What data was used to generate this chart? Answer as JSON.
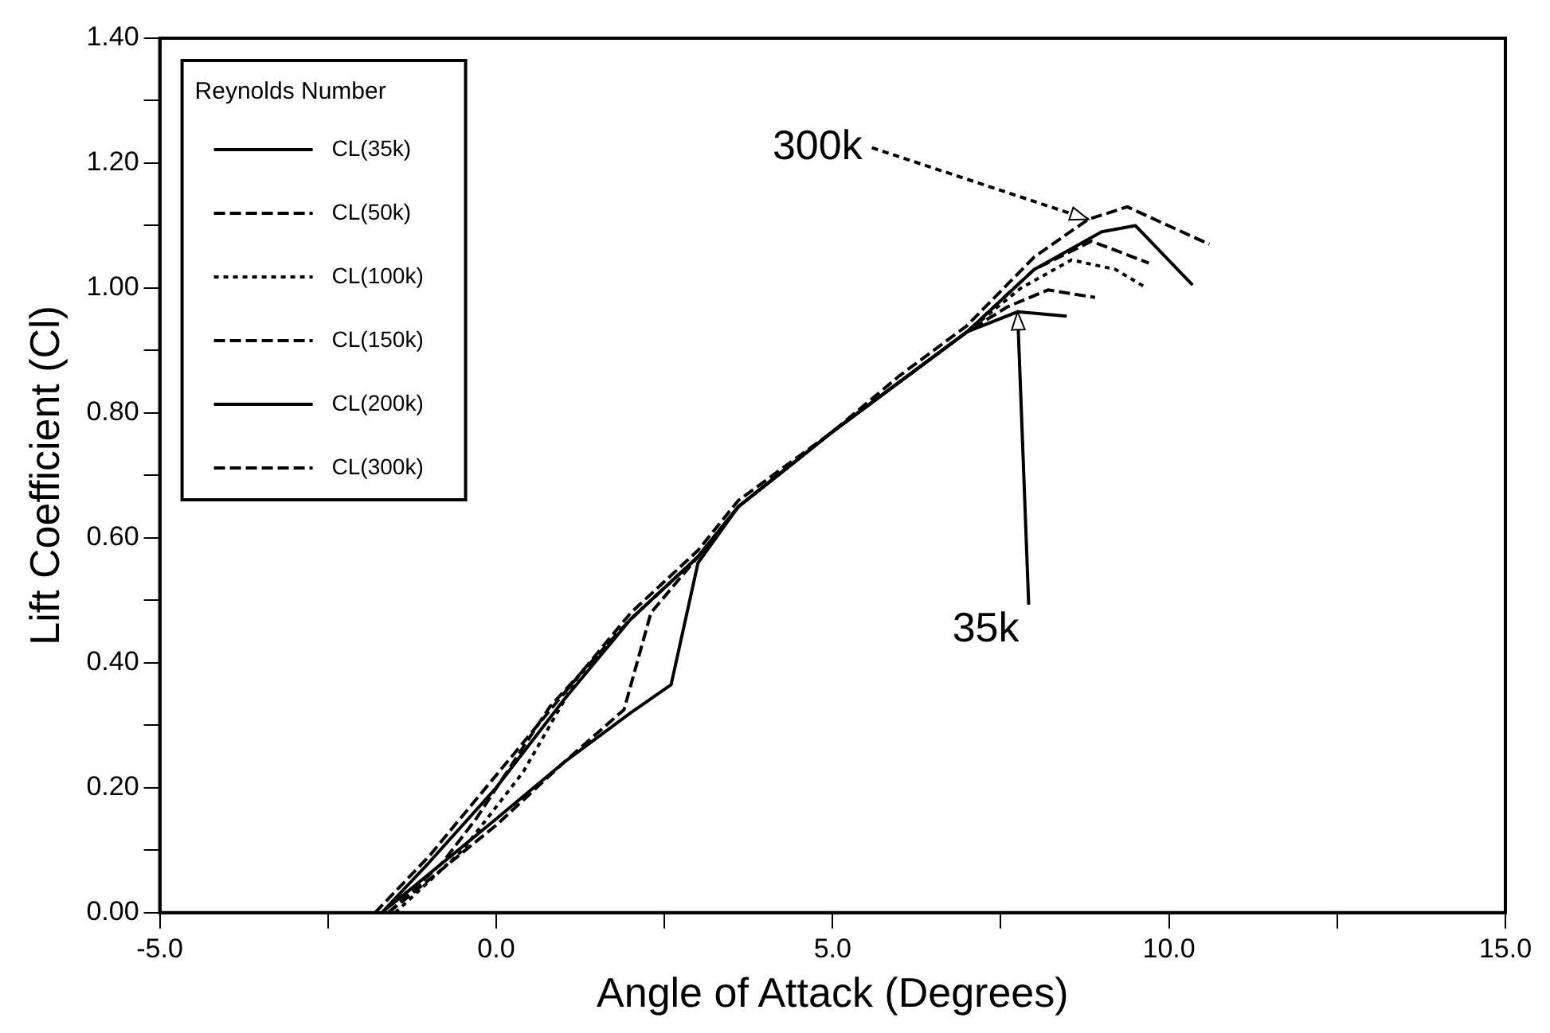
{
  "chart_data": {
    "type": "line",
    "xlabel": "Angle of Attack (Degrees)",
    "ylabel": "Lift Coefficient (Cl)",
    "legend_title": "Reynolds Number",
    "legend": "top left",
    "grid": false,
    "marker": "none",
    "xlim": [
      -5,
      15
    ],
    "xticks": [
      {
        "value": -5,
        "label": "-5.0"
      },
      {
        "value": -2.5,
        "label": null
      },
      {
        "value": 0,
        "label": "0.0"
      },
      {
        "value": 2.5,
        "label": null
      },
      {
        "value": 5,
        "label": "5.0"
      },
      {
        "value": 7.5,
        "label": null
      },
      {
        "value": 10,
        "label": "10.0"
      },
      {
        "value": 12.5,
        "label": null
      },
      {
        "value": 15,
        "label": "15.0"
      }
    ],
    "ylim": [
      0,
      1.4
    ],
    "yticks": [
      {
        "value": 0,
        "label": "0.00"
      },
      {
        "value": 0.1,
        "label": null
      },
      {
        "value": 0.2,
        "label": "0.20"
      },
      {
        "value": 0.3,
        "label": null
      },
      {
        "value": 0.4,
        "label": "0.40"
      },
      {
        "value": 0.5,
        "label": null
      },
      {
        "value": 0.6,
        "label": "0.60"
      },
      {
        "value": 0.7,
        "label": null
      },
      {
        "value": 0.8,
        "label": "0.80"
      },
      {
        "value": 0.9,
        "label": null
      },
      {
        "value": 1,
        "label": "1.00"
      },
      {
        "value": 1.1,
        "label": null
      },
      {
        "value": 1.2,
        "label": "1.20"
      },
      {
        "value": 1.3,
        "label": null
      },
      {
        "value": 1.4,
        "label": "1.40"
      }
    ],
    "series": [
      {
        "name": "CL(35k)",
        "color": "#000000",
        "line_style": "solid",
        "x": [
          -1.7,
          0,
          1,
          2,
          2.6,
          3.0,
          3.6,
          5,
          6,
          7,
          7.75,
          8.48
        ],
        "values": [
          0,
          0.15,
          0.24,
          0.32,
          0.365,
          0.56,
          0.65,
          0.77,
          0.85,
          0.93,
          0.962,
          0.955
        ]
      },
      {
        "name": "CL(50k)",
        "color": "#000000",
        "line_style": "dashed",
        "x": [
          -1.6,
          0,
          1,
          1.9,
          2.3,
          3.0,
          3.6,
          5,
          6,
          7,
          7.6,
          8.2,
          8.9
        ],
        "values": [
          0,
          0.14,
          0.24,
          0.325,
          0.48,
          0.57,
          0.65,
          0.77,
          0.85,
          0.93,
          0.97,
          0.997,
          0.985
        ]
      },
      {
        "name": "CL(100k)",
        "color": "#000000",
        "line_style": "dotted",
        "x": [
          -1.5,
          -0.5,
          0.4,
          1.2,
          2,
          3,
          3.6,
          5,
          6,
          7,
          7.8,
          8.55,
          9.2,
          9.67
        ],
        "values": [
          0,
          0.1,
          0.225,
          0.375,
          0.47,
          0.57,
          0.65,
          0.77,
          0.85,
          0.93,
          1.0,
          1.045,
          1.03,
          1.0
        ]
      },
      {
        "name": "CL(150k)",
        "color": "#000000",
        "line_style": "dashed",
        "x": [
          -1.6,
          -0.8,
          -0.3,
          0.8,
          2,
          3,
          3.6,
          5,
          6,
          7,
          8,
          8.85,
          9.7
        ],
        "values": [
          0,
          0.08,
          0.15,
          0.33,
          0.47,
          0.57,
          0.65,
          0.77,
          0.85,
          0.93,
          1.03,
          1.075,
          1.04
        ]
      },
      {
        "name": "CL(200k)",
        "color": "#000000",
        "line_style": "solid",
        "x": [
          -1.7,
          -1,
          0,
          1,
          2,
          3,
          3.6,
          5,
          6,
          7,
          8,
          9,
          9.5,
          10.35
        ],
        "values": [
          0,
          0.08,
          0.2,
          0.34,
          0.47,
          0.57,
          0.65,
          0.77,
          0.85,
          0.93,
          1.03,
          1.09,
          1.1,
          1.005
        ]
      },
      {
        "name": "CL(300k)",
        "color": "#000000",
        "line_style": "dashed",
        "x": [
          -1.8,
          -1,
          0,
          1,
          2,
          3,
          3.6,
          5,
          6,
          7,
          8,
          8.8,
          9.38,
          10.6
        ],
        "values": [
          0,
          0.09,
          0.22,
          0.35,
          0.48,
          0.58,
          0.66,
          0.77,
          0.86,
          0.94,
          1.05,
          1.11,
          1.13,
          1.07
        ]
      }
    ],
    "annotations": [
      {
        "text": "300k",
        "x": 8.8,
        "y": 1.11
      },
      {
        "text": "35k",
        "x": 7.75,
        "y": 0.962
      }
    ]
  }
}
